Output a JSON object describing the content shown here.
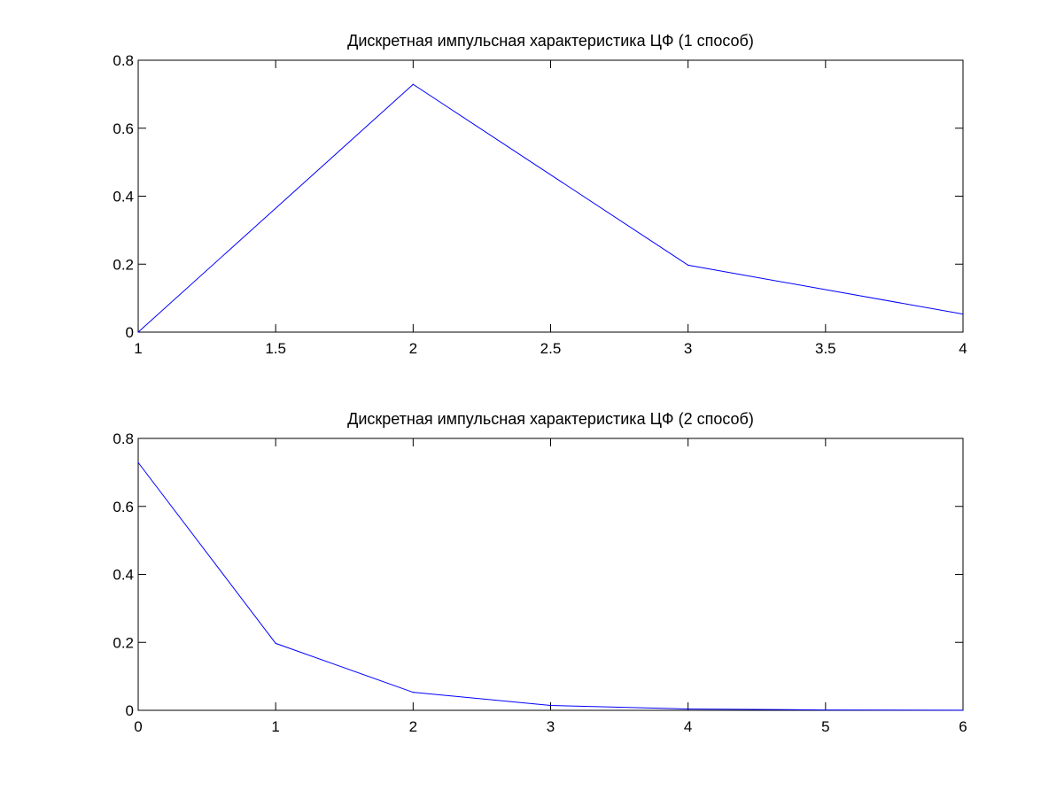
{
  "chart_data": [
    {
      "type": "line",
      "title": "Дискретная импульсная характеристика ЦФ (1 способ)",
      "xlabel": "",
      "ylabel": "",
      "xlim": [
        1,
        4
      ],
      "ylim": [
        0,
        0.8
      ],
      "xticks": [
        "1",
        "1.5",
        "2",
        "2.5",
        "3",
        "3.5",
        "4"
      ],
      "xtick_values": [
        1,
        1.5,
        2,
        2.5,
        3,
        3.5,
        4
      ],
      "yticks": [
        "0",
        "0.2",
        "0.4",
        "0.6",
        "0.8"
      ],
      "ytick_values": [
        0,
        0.2,
        0.4,
        0.6,
        0.8
      ],
      "grid": false,
      "series": [
        {
          "color": "#0000ff",
          "x": [
            1,
            2,
            3,
            4
          ],
          "y": [
            0,
            0.729,
            0.197,
            0.053
          ]
        }
      ]
    },
    {
      "type": "line",
      "title": "Дискретная импульсная характеристика ЦФ (2 способ)",
      "xlabel": "",
      "ylabel": "",
      "xlim": [
        0,
        6
      ],
      "ylim": [
        0,
        0.8
      ],
      "xticks": [
        "0",
        "1",
        "2",
        "3",
        "4",
        "5",
        "6"
      ],
      "xtick_values": [
        0,
        1,
        2,
        3,
        4,
        5,
        6
      ],
      "yticks": [
        "0",
        "0.2",
        "0.4",
        "0.6",
        "0.8"
      ],
      "ytick_values": [
        0,
        0.2,
        0.4,
        0.6,
        0.8
      ],
      "grid": false,
      "series": [
        {
          "color": "#0000ff",
          "x": [
            0,
            1,
            2,
            3,
            4,
            5,
            6
          ],
          "y": [
            0.729,
            0.197,
            0.053,
            0.0144,
            0.0039,
            0.00105,
            0.00028
          ]
        }
      ]
    }
  ]
}
